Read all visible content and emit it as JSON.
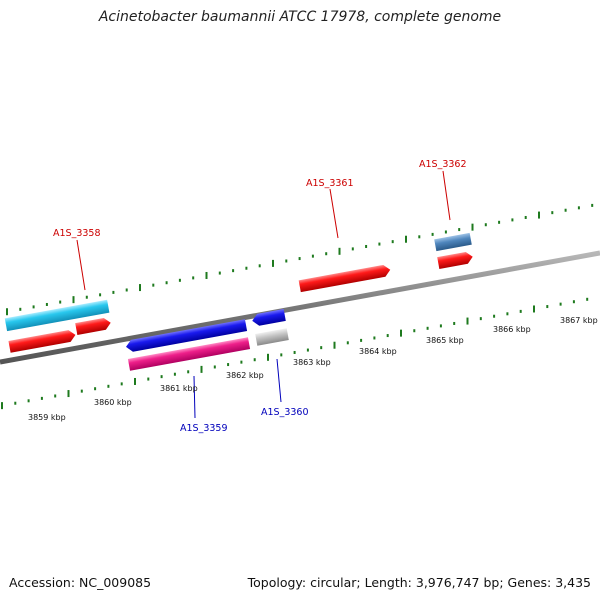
{
  "header": {
    "title": "Acinetobacter baumannii ATCC 17978, complete genome"
  },
  "footer": {
    "accession": "Accession: NC_009085",
    "summary": "Topology: circular; Length: 3,976,747 bp; Genes: 3,435"
  },
  "scale_labels": [
    "3859 kbp",
    "3860 kbp",
    "3861 kbp",
    "3862 kbp",
    "3863 kbp",
    "3864 kbp",
    "3865 kbp",
    "3866 kbp",
    "3867 kbp"
  ],
  "colors": {
    "tick": "#1e7a1e",
    "backbone": "#808080",
    "red": "#ff1a1a",
    "cyan": "#29c8ee",
    "blue": "#1a1aee",
    "magenta": "#ee1f8a",
    "gray": "#c0c0c0",
    "steel": "#4f86bd",
    "label_plus": "#cc0000",
    "label_minus": "#0000bb"
  },
  "gene_labels": [
    {
      "id": "A1S_3358",
      "text": "A1S_3358",
      "strand": "plus"
    },
    {
      "id": "A1S_3359",
      "text": "A1S_3359",
      "strand": "minus"
    },
    {
      "id": "A1S_3360",
      "text": "A1S_3360",
      "strand": "minus"
    },
    {
      "id": "A1S_3361",
      "text": "A1S_3361",
      "strand": "plus"
    },
    {
      "id": "A1S_3362",
      "text": "A1S_3362",
      "strand": "plus"
    }
  ]
}
